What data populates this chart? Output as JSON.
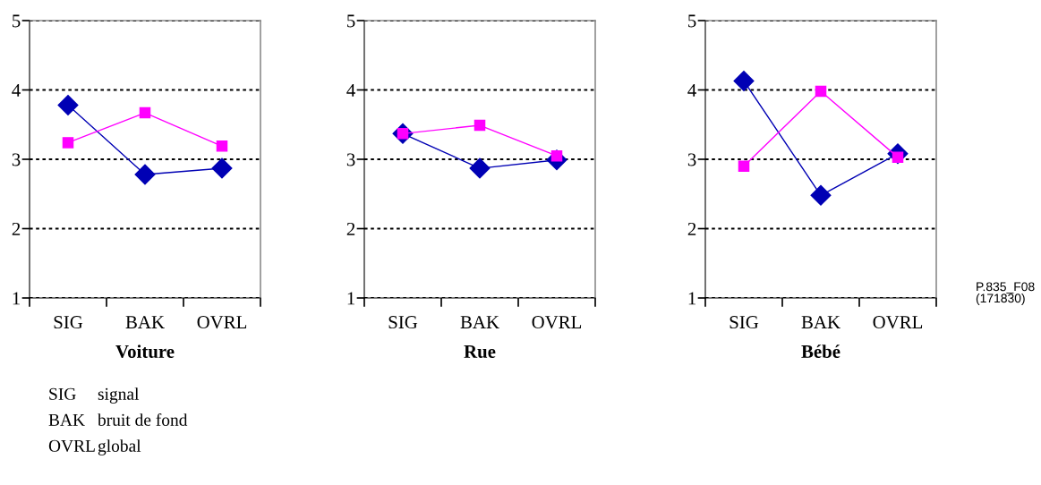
{
  "chart_data": [
    {
      "type": "line",
      "xlabel": "Voiture",
      "categories": [
        "SIG",
        "BAK",
        "OVRL"
      ],
      "ylim": [
        1,
        5
      ],
      "yticks": [
        1,
        2,
        3,
        4,
        5
      ],
      "grid": "y",
      "line_style": "solid",
      "series": [
        {
          "color": "#0000b4",
          "marker": "diamond",
          "values": [
            3.78,
            2.78,
            2.87
          ]
        },
        {
          "color": "#ff00ff",
          "marker": "square",
          "values": [
            3.24,
            3.67,
            3.19
          ]
        }
      ],
      "annotations": [
        "SIG",
        "signal",
        "BAK",
        "bruit de fond",
        "OVRL",
        "global"
      ]
    },
    {
      "type": "line",
      "xlabel": "Rue",
      "categories": [
        "SIG",
        "BAK",
        "OVRL"
      ],
      "ylim": [
        1,
        5
      ],
      "yticks": [
        1,
        2,
        3,
        4,
        5
      ],
      "grid": "y",
      "line_style": "solid",
      "series": [
        {
          "color": "#0000b4",
          "marker": "diamond",
          "values": [
            3.37,
            2.87,
            2.99
          ]
        },
        {
          "color": "#ff00ff",
          "marker": "square",
          "values": [
            3.37,
            3.49,
            3.05
          ]
        }
      ]
    },
    {
      "type": "line",
      "xlabel": "Bébé",
      "categories": [
        "SIG",
        "BAK",
        "OVRL"
      ],
      "ylim": [
        1,
        5
      ],
      "yticks": [
        1,
        2,
        3,
        4,
        5
      ],
      "grid": "y",
      "line_style": "solid",
      "series": [
        {
          "color": "#0000b4",
          "marker": "diamond",
          "values": [
            4.13,
            2.48,
            3.08
          ]
        },
        {
          "color": "#ff00ff",
          "marker": "square",
          "values": [
            2.9,
            3.98,
            3.03
          ]
        }
      ],
      "annotations": [
        "P.835_F08\n(171830)"
      ]
    }
  ]
}
